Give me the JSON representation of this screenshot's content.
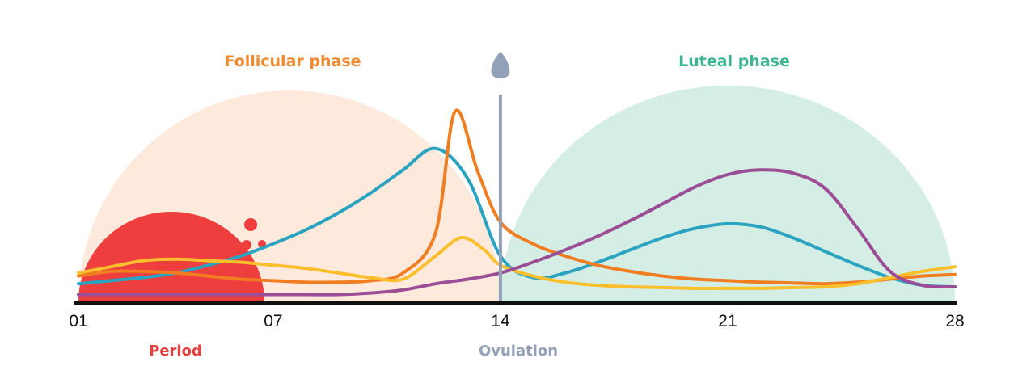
{
  "chart_data": {
    "type": "line",
    "x_range": [
      1,
      28
    ],
    "x_ticks": [
      1,
      7,
      14,
      21,
      28
    ],
    "tick_labels": [
      "01",
      "07",
      "14",
      "21",
      "28"
    ],
    "phases": {
      "follicular": {
        "label": "Follicular phase",
        "range": [
          1,
          14
        ],
        "color": "#fdeadd"
      },
      "luteal": {
        "label": "Luteal phase",
        "range": [
          14,
          28
        ],
        "color": "#d5eee5"
      },
      "period": {
        "label": "Period",
        "range": [
          1,
          7
        ],
        "color": "#ee3e3e"
      },
      "ovulation": {
        "label": "Ovulation",
        "day": 14,
        "color": "#92a0b8"
      }
    },
    "label_colors": {
      "follicular": "#f08a2e",
      "luteal": "#3db591",
      "period": "#e53f3f",
      "ovulation": "#92a0b8"
    },
    "series": [
      {
        "color": "#2aa3c1",
        "points": [
          [
            1,
            1.2
          ],
          [
            2,
            1.4
          ],
          [
            3,
            1.6
          ],
          [
            4,
            1.9
          ],
          [
            5,
            2.4
          ],
          [
            6,
            3.0
          ],
          [
            7,
            3.8
          ],
          [
            8,
            4.7
          ],
          [
            9,
            5.8
          ],
          [
            10,
            7.1
          ],
          [
            11,
            8.6
          ],
          [
            12,
            10.0
          ],
          [
            13,
            8.0
          ],
          [
            14,
            3.0
          ],
          [
            15,
            1.6
          ],
          [
            16,
            1.9
          ],
          [
            17,
            2.6
          ],
          [
            18,
            3.4
          ],
          [
            19,
            4.2
          ],
          [
            20,
            4.8
          ],
          [
            21,
            5.1
          ],
          [
            22,
            4.9
          ],
          [
            23,
            4.2
          ],
          [
            24,
            3.3
          ],
          [
            25,
            2.4
          ],
          [
            26,
            1.6
          ],
          [
            27,
            1.1
          ],
          [
            28,
            1.0
          ]
        ]
      },
      {
        "color": "#f07d1f",
        "points": [
          [
            1,
            1.7
          ],
          [
            2,
            2.0
          ],
          [
            3,
            2.0
          ],
          [
            4,
            1.9
          ],
          [
            5,
            1.7
          ],
          [
            6,
            1.5
          ],
          [
            7,
            1.4
          ],
          [
            8,
            1.3
          ],
          [
            9,
            1.3
          ],
          [
            10,
            1.4
          ],
          [
            11,
            1.9
          ],
          [
            12,
            4.5
          ],
          [
            12.6,
            12.4
          ],
          [
            13.3,
            8.5
          ],
          [
            14,
            5.2
          ],
          [
            15,
            3.8
          ],
          [
            16,
            3.0
          ],
          [
            17,
            2.4
          ],
          [
            18,
            2.0
          ],
          [
            19,
            1.7
          ],
          [
            20,
            1.5
          ],
          [
            21,
            1.4
          ],
          [
            22,
            1.3
          ],
          [
            23,
            1.25
          ],
          [
            24,
            1.2
          ],
          [
            25,
            1.3
          ],
          [
            26,
            1.5
          ],
          [
            27,
            1.7
          ],
          [
            28,
            1.8
          ]
        ]
      },
      {
        "color": "#fbbf2d",
        "points": [
          [
            1,
            1.9
          ],
          [
            2,
            2.3
          ],
          [
            3,
            2.7
          ],
          [
            4,
            2.8
          ],
          [
            5,
            2.7
          ],
          [
            6,
            2.6
          ],
          [
            7,
            2.4
          ],
          [
            8,
            2.2
          ],
          [
            9,
            1.9
          ],
          [
            10,
            1.6
          ],
          [
            11,
            1.5
          ],
          [
            12,
            3.0
          ],
          [
            12.8,
            4.2
          ],
          [
            13.5,
            3.4
          ],
          [
            14,
            2.4
          ],
          [
            15,
            1.7
          ],
          [
            16,
            1.3
          ],
          [
            17,
            1.1
          ],
          [
            18,
            1.0
          ],
          [
            19,
            0.95
          ],
          [
            20,
            0.9
          ],
          [
            21,
            0.9
          ],
          [
            22,
            0.9
          ],
          [
            23,
            0.95
          ],
          [
            24,
            1.0
          ],
          [
            25,
            1.2
          ],
          [
            26,
            1.6
          ],
          [
            27,
            2.0
          ],
          [
            28,
            2.3
          ]
        ]
      },
      {
        "color": "#9b4d96",
        "points": [
          [
            1,
            0.5
          ],
          [
            2,
            0.5
          ],
          [
            3,
            0.5
          ],
          [
            4,
            0.5
          ],
          [
            5,
            0.5
          ],
          [
            6,
            0.5
          ],
          [
            7,
            0.5
          ],
          [
            8,
            0.5
          ],
          [
            9,
            0.5
          ],
          [
            10,
            0.6
          ],
          [
            11,
            0.8
          ],
          [
            12,
            1.2
          ],
          [
            13,
            1.5
          ],
          [
            14,
            1.9
          ],
          [
            15,
            2.6
          ],
          [
            16,
            3.4
          ],
          [
            17,
            4.3
          ],
          [
            18,
            5.3
          ],
          [
            19,
            6.4
          ],
          [
            20,
            7.5
          ],
          [
            21,
            8.3
          ],
          [
            22,
            8.6
          ],
          [
            23,
            8.4
          ],
          [
            24,
            7.4
          ],
          [
            25,
            4.8
          ],
          [
            26,
            2.0
          ],
          [
            27,
            1.1
          ],
          [
            28,
            1.0
          ]
        ]
      }
    ],
    "ylim": [
      0,
      12.4
    ]
  }
}
